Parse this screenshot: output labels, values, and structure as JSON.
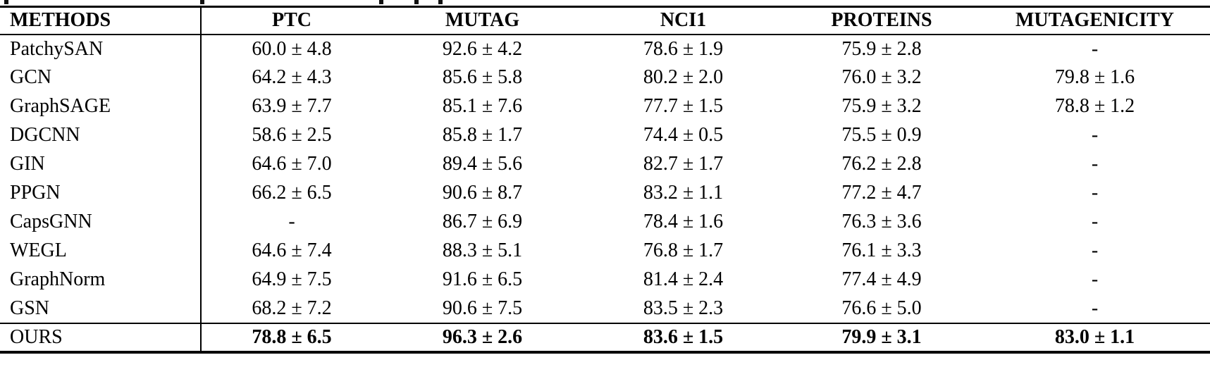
{
  "page": {
    "background": "#ffffff",
    "text_color": "#000000",
    "rule_color": "#000000"
  },
  "table": {
    "columns": [
      "METHODS",
      "PTC",
      "MUTAG",
      "NCI1",
      "PROTEINS",
      "MUTAGENICITY"
    ],
    "rows": [
      {
        "method": "PatchySAN",
        "values": [
          "60.0 ± 4.8",
          "92.6 ± 4.2",
          "78.6 ± 1.9",
          "75.9 ± 2.8",
          "-"
        ],
        "bold_values": false
      },
      {
        "method": "GCN",
        "values": [
          "64.2 ± 4.3",
          "85.6 ± 5.8",
          "80.2 ± 2.0",
          "76.0 ± 3.2",
          "79.8 ± 1.6"
        ],
        "bold_values": false
      },
      {
        "method": "GraphSAGE",
        "values": [
          "63.9 ± 7.7",
          "85.1 ± 7.6",
          "77.7 ± 1.5",
          "75.9 ± 3.2",
          "78.8 ± 1.2"
        ],
        "bold_values": false
      },
      {
        "method": "DGCNN",
        "values": [
          "58.6 ± 2.5",
          "85.8 ± 1.7",
          "74.4 ± 0.5",
          "75.5 ± 0.9",
          "-"
        ],
        "bold_values": false
      },
      {
        "method": "GIN",
        "values": [
          "64.6 ± 7.0",
          "89.4 ± 5.6",
          "82.7 ± 1.7",
          "76.2 ± 2.8",
          "-"
        ],
        "bold_values": false
      },
      {
        "method": "PPGN",
        "values": [
          "66.2 ± 6.5",
          "90.6 ± 8.7",
          "83.2 ± 1.1",
          "77.2 ± 4.7",
          "-"
        ],
        "bold_values": false
      },
      {
        "method": "CapsGNN",
        "values": [
          "-",
          "86.7 ± 6.9",
          "78.4 ± 1.6",
          "76.3 ± 3.6",
          "-"
        ],
        "bold_values": false
      },
      {
        "method": "WEGL",
        "values": [
          "64.6 ± 7.4",
          "88.3 ± 5.1",
          "76.8 ± 1.7",
          "76.1 ± 3.3",
          "-"
        ],
        "bold_values": false
      },
      {
        "method": "GraphNorm",
        "values": [
          "64.9 ± 7.5",
          "91.6 ± 6.5",
          "81.4 ± 2.4",
          "77.4 ± 4.9",
          "-"
        ],
        "bold_values": false
      },
      {
        "method": "GSN",
        "values": [
          "68.2 ± 7.2",
          "90.6 ± 7.5",
          "83.5 ± 2.3",
          "76.6 ± 5.0",
          "-"
        ],
        "bold_values": false
      },
      {
        "method": "OURS",
        "values": [
          "78.8 ± 6.5",
          "96.3 ± 2.6",
          "83.6 ± 1.5",
          "79.9 ± 3.1",
          "83.0 ± 1.1"
        ],
        "bold_values": true
      }
    ]
  }
}
